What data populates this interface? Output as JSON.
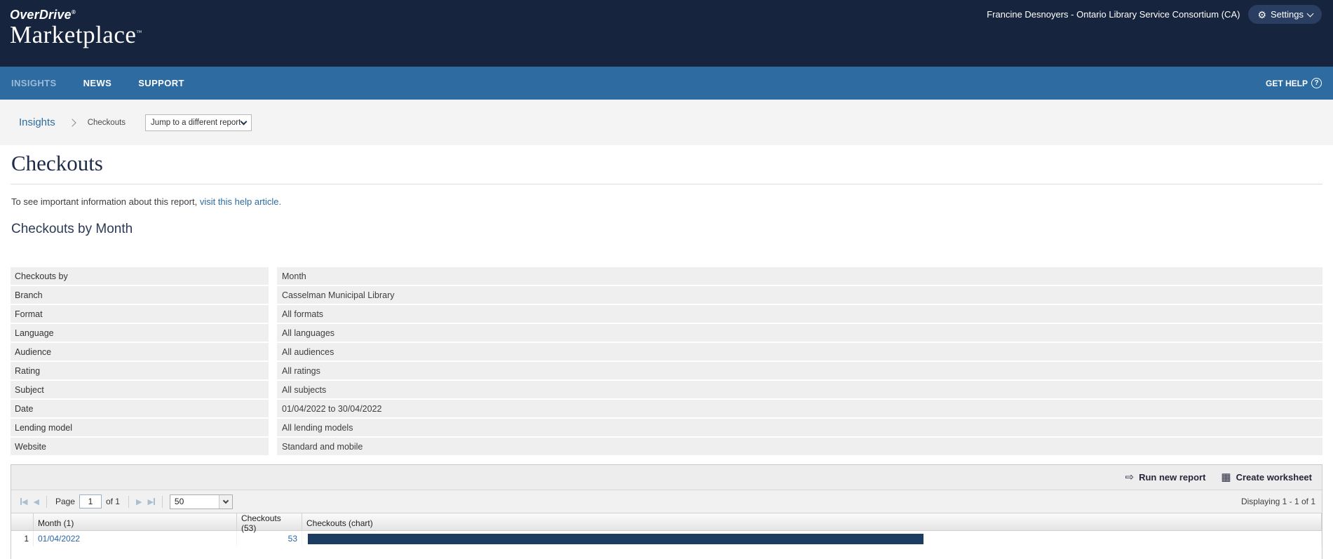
{
  "header": {
    "logo_line1": "OverDrive",
    "logo_reg": "®",
    "logo_line2": "Marketplace",
    "logo_tm": "™",
    "user": "Francine Desnoyers - Ontario Library Service Consortium (CA)",
    "settings_label": "Settings",
    "gear_icon": "⚙"
  },
  "nav": {
    "items": [
      {
        "label": "INSIGHTS",
        "active": true
      },
      {
        "label": "NEWS",
        "active": false
      },
      {
        "label": "SUPPORT",
        "active": false
      }
    ],
    "get_help_label": "GET HELP",
    "help_icon": "?"
  },
  "breadcrumb": {
    "root": "Insights",
    "current": "Checkouts",
    "jump_select_value": "Jump to a different report"
  },
  "page": {
    "title": "Checkouts",
    "help_text_prefix": "To see important information about this report, ",
    "help_link": "visit this help article.",
    "section_heading": "Checkouts by Month"
  },
  "summary": {
    "rows": [
      {
        "label": "Checkouts by",
        "value": "Month"
      },
      {
        "label": "Branch",
        "value": "Casselman Municipal Library"
      },
      {
        "label": "Format",
        "value": "All formats"
      },
      {
        "label": "Language",
        "value": "All languages"
      },
      {
        "label": "Audience",
        "value": "All audiences"
      },
      {
        "label": "Rating",
        "value": "All ratings"
      },
      {
        "label": "Subject",
        "value": "All subjects"
      },
      {
        "label": "Date",
        "value": "01/04/2022 to 30/04/2022"
      },
      {
        "label": "Lending model",
        "value": "All lending models"
      },
      {
        "label": "Website",
        "value": "Standard and mobile"
      }
    ]
  },
  "results": {
    "toolbar": {
      "run_new_report": "Run new report",
      "run_icon": "⇨",
      "create_worksheet": "Create worksheet",
      "worksheet_icon": "▦"
    },
    "pagination": {
      "page_label": "Page",
      "page_value": "1",
      "of_label": "of 1",
      "page_size": "50",
      "displaying": "Displaying 1 - 1 of 1"
    },
    "table": {
      "columns": [
        {
          "label": "Month (1)",
          "align": "left"
        },
        {
          "label": "Checkouts (53)",
          "align": "right"
        },
        {
          "label": "Checkouts (chart)",
          "align": "left"
        }
      ],
      "rows": [
        {
          "num": "1",
          "month": "01/04/2022",
          "checkouts": "53",
          "bar_pct": 61
        }
      ]
    }
  },
  "colors": {
    "header_navy": "#17243e",
    "nav_blue": "#2d6ba0",
    "link_blue": "#2d6ba0",
    "grid_link_blue": "#2a64a8",
    "bar_navy": "#1d3c62",
    "summary_gray": "#efeff0"
  }
}
